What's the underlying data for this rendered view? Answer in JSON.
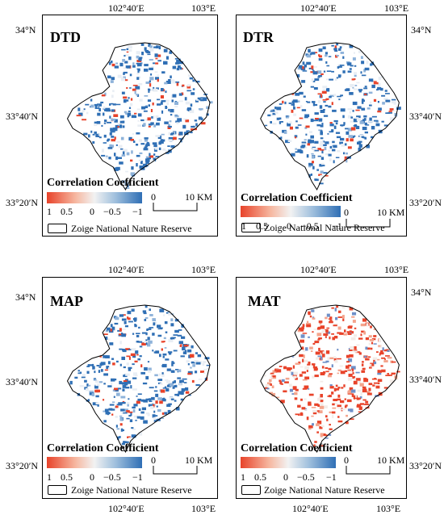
{
  "longitude_labels": {
    "a": "102°40′E",
    "b": "103°E"
  },
  "latitude_labels": {
    "n34": "34°N",
    "n3340": "33°40′N",
    "n3320": "33°20′N"
  },
  "legend": {
    "title": "Correlation Coefficient",
    "ticks": [
      "1",
      "0.5",
      "0",
      "−0.5",
      "−1"
    ],
    "zero_label": "0",
    "scale_label": "10 KM",
    "reserve_label": "Zoige National Nature Reserve",
    "colors": {
      "positive": "#e8432a",
      "neutral": "#f2f2f2",
      "negative": "#2f6fb5"
    }
  },
  "panels": [
    {
      "id": "dtd",
      "title": "DTD",
      "dominant": "negative"
    },
    {
      "id": "dtr",
      "title": "DTR",
      "dominant": "negative"
    },
    {
      "id": "map",
      "title": "MAP",
      "dominant": "negative"
    },
    {
      "id": "mat",
      "title": "MAT",
      "dominant": "positive"
    }
  ]
}
